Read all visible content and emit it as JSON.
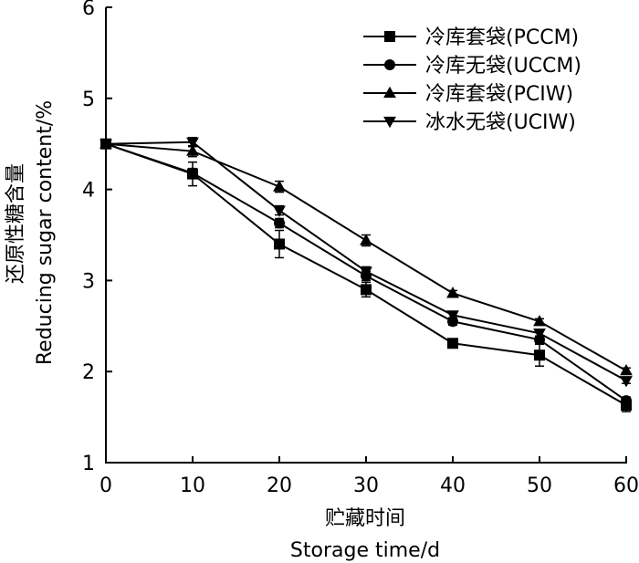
{
  "chart_data": {
    "type": "line",
    "xlabel_cn": "贮藏时间",
    "xlabel_en": "Storage time/d",
    "ylabel_cn": "还原性糖含量",
    "ylabel_en": "Reducing sugar content/%",
    "xlim": [
      0,
      60
    ],
    "ylim": [
      1,
      6
    ],
    "x_ticks": [
      0,
      10,
      20,
      30,
      40,
      50,
      60
    ],
    "y_ticks": [
      1,
      2,
      3,
      4,
      5,
      6
    ],
    "grid": false,
    "legend_position": "top-right",
    "x": [
      0,
      10,
      20,
      30,
      40,
      50,
      60
    ],
    "series": [
      {
        "name": "冷库套袋(PCCM)",
        "marker": "square",
        "values": [
          4.5,
          4.17,
          3.4,
          2.9,
          2.31,
          2.18,
          1.63
        ],
        "errors": [
          0.03,
          0.13,
          0.15,
          0.08,
          0.03,
          0.12,
          0.07
        ]
      },
      {
        "name": "冷库无袋(UCCM)",
        "marker": "circle",
        "values": [
          4.5,
          4.18,
          3.63,
          3.05,
          2.55,
          2.35,
          1.68
        ],
        "errors": [
          0.03,
          0.05,
          0.05,
          0.05,
          0.04,
          0.04,
          0.04
        ]
      },
      {
        "name": "冷库套袋(PCIW)",
        "marker": "triangle-up",
        "values": [
          4.5,
          4.42,
          4.03,
          3.44,
          2.86,
          2.55,
          2.01
        ],
        "errors": [
          0.03,
          0.06,
          0.06,
          0.06,
          0.03,
          0.03,
          0.03
        ]
      },
      {
        "name": "冰水无袋(UCIW)",
        "marker": "triangle-down",
        "values": [
          4.5,
          4.52,
          3.77,
          3.1,
          2.62,
          2.42,
          1.9
        ],
        "errors": [
          0.03,
          0.05,
          0.05,
          0.05,
          0.03,
          0.03,
          0.03
        ]
      }
    ]
  }
}
